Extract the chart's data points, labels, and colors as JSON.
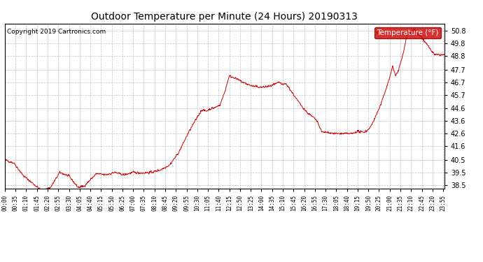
{
  "title": "Outdoor Temperature per Minute (24 Hours) 20190313",
  "copyright_text": "Copyright 2019 Cartronics.com",
  "legend_label": "Temperature (°F)",
  "line_color": "#cc0000",
  "legend_bg": "#cc0000",
  "legend_text_color": "#ffffff",
  "bg_color": "#ffffff",
  "plot_bg_color": "#ffffff",
  "grid_color": "#b0b0b0",
  "title_color": "#000000",
  "ylim": [
    38.2,
    51.4
  ],
  "yticks": [
    38.5,
    39.5,
    40.5,
    41.6,
    42.6,
    43.6,
    44.6,
    45.7,
    46.7,
    47.7,
    48.8,
    49.8,
    50.8
  ],
  "xtick_interval": 35,
  "n_minutes": 1440
}
